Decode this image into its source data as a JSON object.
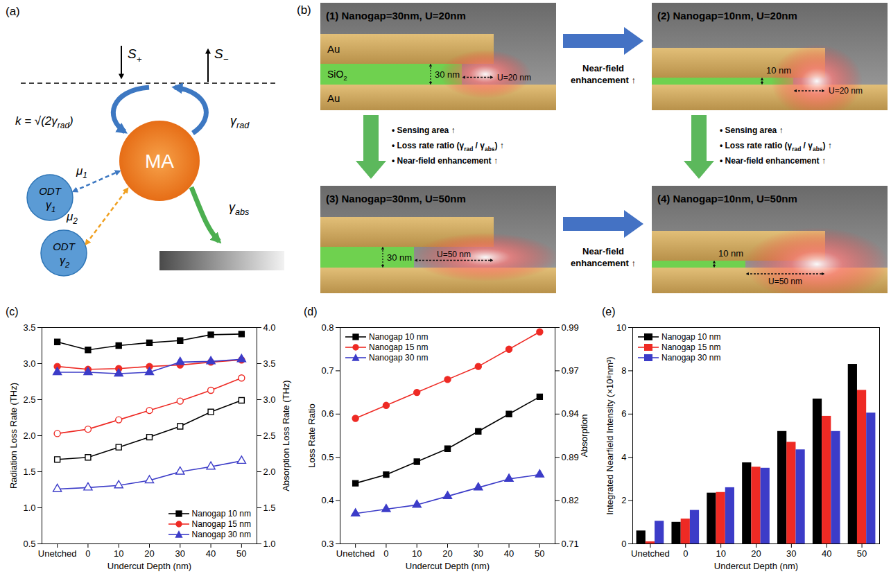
{
  "diagram_a": {
    "label": "(a)",
    "incoming": [
      "S",
      {
        "sub": "+"
      }
    ],
    "outgoing": [
      "S",
      {
        "sub": "−"
      }
    ],
    "coupling": [
      "k = √(2γ",
      {
        "sub": "rad"
      },
      ")"
    ],
    "radiation": [
      "γ",
      {
        "sub": "rad"
      }
    ],
    "resonator": "MA",
    "molecules": [
      {
        "label": "ODT",
        "rate": [
          "γ",
          {
            "sub": "1"
          }
        ],
        "coupling": [
          "μ",
          {
            "sub": "1"
          }
        ]
      },
      {
        "label": "ODT",
        "rate": [
          "γ",
          {
            "sub": "2"
          }
        ],
        "coupling": [
          "μ",
          {
            "sub": "2"
          }
        ]
      }
    ],
    "absorption": [
      "γ",
      {
        "sub": "abs"
      }
    ]
  },
  "diagram_b": {
    "label": "(b)",
    "panels": [
      {
        "title": "(1) Nanogap=30nm, U=20nm",
        "nanogap": 30,
        "undercut": 20,
        "gap_label": "30 nm",
        "undercut_label": "U=20 nm",
        "layers": [
          "Au",
          [
            "SiO",
            {
              "sub": "2"
            }
          ],
          "Au"
        ]
      },
      {
        "title": "(2) Nanogap=10nm, U=20nm",
        "nanogap": 10,
        "undercut": 20,
        "gap_label": "10 nm",
        "undercut_label": "U=20 nm"
      },
      {
        "title": "(3) Nanogap=30nm, U=50nm",
        "nanogap": 30,
        "undercut": 50,
        "gap_label": "30 nm",
        "undercut_label": "U=50 nm"
      },
      {
        "title": "(4) Nanogap=10nm, U=50nm",
        "nanogap": 10,
        "undercut": 50,
        "gap_label": "10 nm",
        "undercut_label": "U=50 nm"
      }
    ],
    "horizontal_arrows": [
      "Near-field enhancement ↑",
      "Near-field enhancement ↑"
    ],
    "vertical_arrows": [
      [
        [
          "• Sensing area ↑"
        ],
        [
          "• Loss rate ratio (γ",
          {
            "sub": "rad"
          },
          " / γ",
          {
            "sub": "abs"
          },
          ") ↑"
        ],
        [
          "• Near-field enhancement ↑"
        ]
      ],
      [
        [
          "• Sensing area ↑"
        ],
        [
          "• Loss rate ratio (γ",
          {
            "sub": "rad"
          },
          " / γ",
          {
            "sub": "abs"
          },
          ") ↑"
        ],
        [
          "• Near-field enhancement ↑"
        ]
      ]
    ]
  },
  "chart_data": [
    {
      "type": "line",
      "title": "(c)",
      "categories": [
        "Unetched",
        "0",
        "10",
        "20",
        "30",
        "40",
        "50"
      ],
      "x_label": "Undercut Depth (nm)",
      "y_label": "Radiation Loss Rate (THz)",
      "y2_label": "Absorption Loss Rate (THz)",
      "ylim": [
        0.5,
        3.5
      ],
      "yticks": [
        0.5,
        {
          "value": 1,
          "label": "1.0"
        },
        1.5,
        {
          "value": 2,
          "label": "2.0"
        },
        2.5,
        {
          "value": 3,
          "label": "3.0"
        },
        3.5
      ],
      "y2lim": [
        1,
        4
      ],
      "y2ticks": [
        {
          "value": 1,
          "label": "1.0"
        },
        1.5,
        {
          "value": 2,
          "label": "2.0"
        },
        2.5,
        {
          "value": 3,
          "label": "3.0"
        },
        3.5,
        {
          "value": 4,
          "label": "4.0"
        }
      ],
      "legend": "bottom-right",
      "series": [
        {
          "name": "Nanogap 10 nm",
          "color": "#000000",
          "marker": "square",
          "line_style": "solid",
          "axis": "y2",
          "values": [
            3.8,
            3.69,
            3.75,
            3.79,
            3.82,
            3.9,
            3.91
          ]
        },
        {
          "name": "Nanogap 15 nm",
          "color": "#ee2a24",
          "marker": "circle",
          "line_style": "solid",
          "axis": "y2",
          "values": [
            3.46,
            3.42,
            3.43,
            3.46,
            3.48,
            3.52,
            3.55
          ]
        },
        {
          "name": "Nanogap 30 nm",
          "color": "#3c3cc8",
          "marker": "triangle",
          "line_style": "solid",
          "axis": "y2",
          "values": [
            3.38,
            3.38,
            3.36,
            3.38,
            3.52,
            3.53,
            3.56
          ]
        },
        {
          "name": "Nanogap 10 nm",
          "color": "#000000",
          "marker": "square-open",
          "line_style": "solid",
          "values": [
            1.67,
            1.7,
            1.84,
            1.98,
            2.13,
            2.33,
            2.49
          ]
        },
        {
          "name": "Nanogap 15 nm",
          "color": "#ee2a24",
          "marker": "circle-open",
          "line_style": "solid",
          "values": [
            2.03,
            2.09,
            2.22,
            2.35,
            2.48,
            2.63,
            2.8
          ]
        },
        {
          "name": "Nanogap 30 nm",
          "color": "#3c3cc8",
          "marker": "triangle-open",
          "line_style": "solid",
          "values": [
            1.26,
            1.28,
            1.31,
            1.38,
            1.5,
            1.57,
            1.65
          ]
        }
      ]
    },
    {
      "type": "line",
      "title": "(d)",
      "categories": [
        "Unetched",
        "0",
        "10",
        "20",
        "30",
        "40",
        "50"
      ],
      "x_label": "Undercut Depth (nm)",
      "y_label": "Loss Rate Ratio",
      "y2_label": "Absorption",
      "ylim": [
        0.3,
        0.8
      ],
      "yticks": [
        0.3,
        0.4,
        0.5,
        0.6,
        0.7,
        0.8
      ],
      "y2lim": [
        0.71,
        0.99
      ],
      "y2ticks": [
        0.71,
        0.82,
        0.89,
        0.94,
        0.97,
        0.99
      ],
      "legend": "top-left",
      "series": [
        {
          "name": "Nanogap 10 nm",
          "color": "#000000",
          "marker": "square",
          "line_style": "solid",
          "values": [
            0.44,
            0.46,
            0.49,
            0.52,
            0.56,
            0.6,
            0.64
          ]
        },
        {
          "name": "Nanogap 15 nm",
          "color": "#ee2a24",
          "marker": "circle",
          "line_style": "solid",
          "values": [
            0.59,
            0.62,
            0.65,
            0.68,
            0.71,
            0.75,
            0.79
          ]
        },
        {
          "name": "Nanogap 30 nm",
          "color": "#3c3cc8",
          "marker": "triangle",
          "line_style": "solid",
          "values": [
            0.37,
            0.38,
            0.39,
            0.41,
            0.43,
            0.45,
            0.46
          ]
        }
      ]
    },
    {
      "type": "bar",
      "title": "(e)",
      "categories": [
        "Unetched",
        "0",
        "10",
        "20",
        "30",
        "40",
        "50"
      ],
      "x_label": "Undercut Depth (nm)",
      "y_label": "Integrated Nearfield Intensity (×10⁸nm³)",
      "ylim": [
        0,
        10
      ],
      "yticks": [
        0,
        2,
        4,
        6,
        8,
        10
      ],
      "legend": "top-left",
      "series": [
        {
          "name": "Nanogap 10 nm",
          "color": "#000000",
          "values": [
            0.6,
            1.0,
            2.35,
            3.75,
            5.2,
            6.7,
            8.3
          ]
        },
        {
          "name": "Nanogap 15 nm",
          "color": "#ee2a24",
          "values": [
            0.1,
            1.15,
            2.38,
            3.55,
            4.7,
            5.9,
            7.1
          ]
        },
        {
          "name": "Nanogap 30 nm",
          "color": "#3c3cc8",
          "values": [
            1.05,
            1.55,
            2.6,
            3.5,
            4.35,
            5.2,
            6.05
          ]
        }
      ]
    }
  ]
}
